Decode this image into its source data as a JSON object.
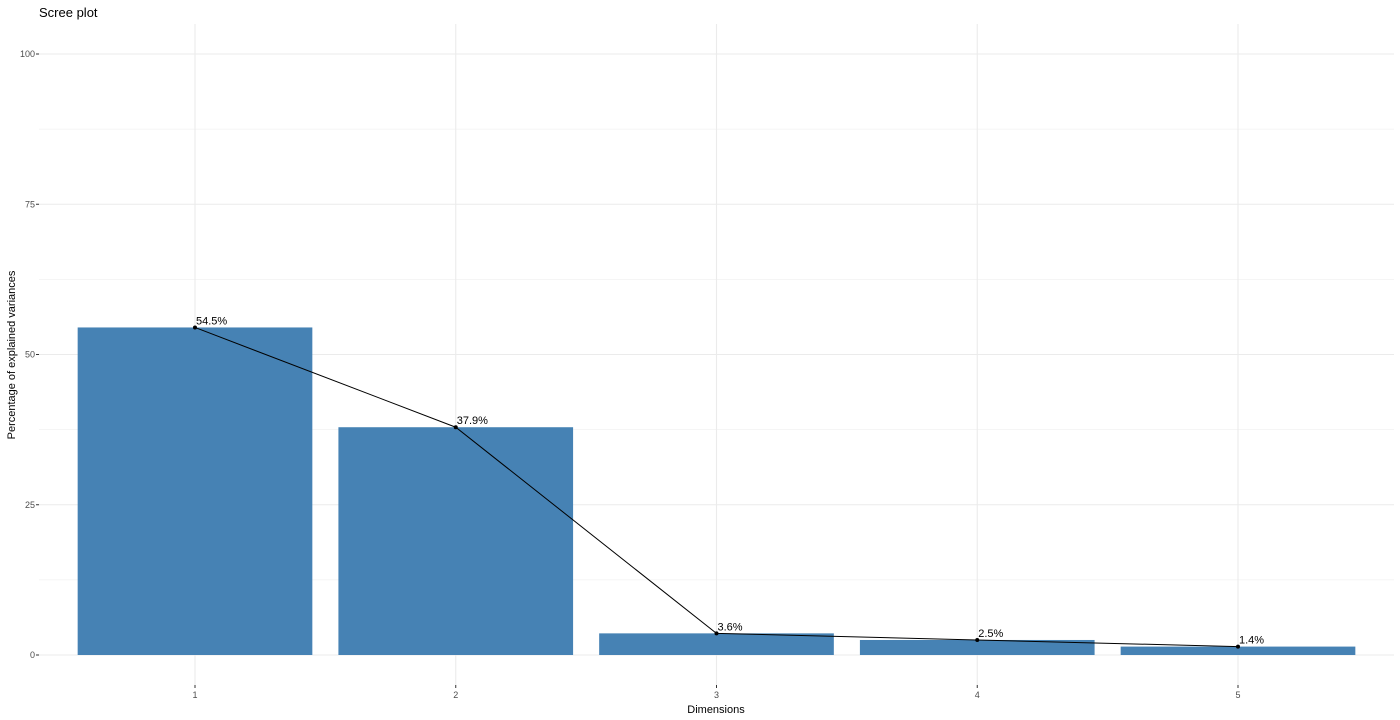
{
  "chart_data": {
    "type": "bar",
    "title": "Scree plot",
    "xlabel": "Dimensions",
    "ylabel": "Percentage of explained variances",
    "categories": [
      "1",
      "2",
      "3",
      "4",
      "5"
    ],
    "values": [
      54.5,
      37.9,
      3.6,
      2.5,
      1.4
    ],
    "labels": [
      "54.5%",
      "37.9%",
      "3.6%",
      "2.5%",
      "1.4%"
    ],
    "ylim": [
      0,
      100
    ],
    "yticks": [
      0,
      25,
      50,
      75,
      100
    ],
    "ytick_labels": [
      "0",
      "25",
      "50",
      "75",
      "100"
    ],
    "grid": true,
    "line_overlay": true,
    "colors": {
      "bar": "#4682B4",
      "line": "#000000",
      "grid": "#EBEBEB"
    }
  }
}
